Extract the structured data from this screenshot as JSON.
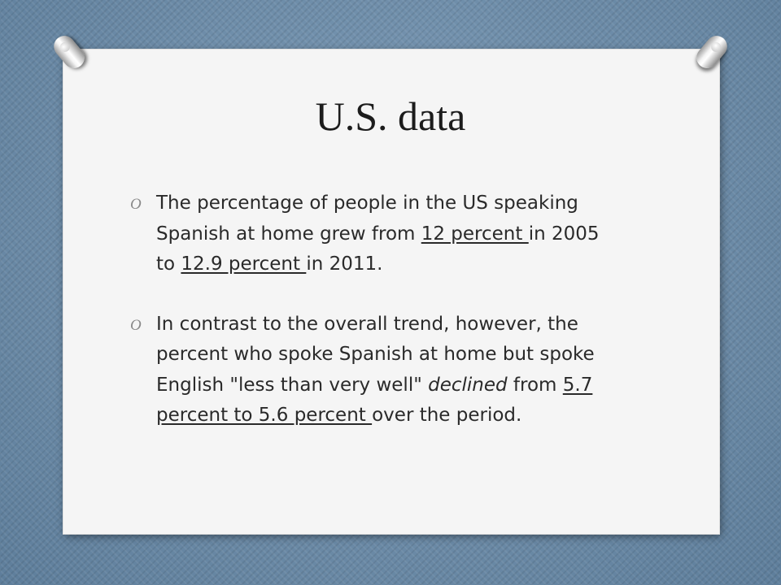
{
  "slide": {
    "title": "U.S. data",
    "bullet_marker": "O",
    "bullets": [
      {
        "segments": [
          {
            "text": "The percentage of people in the US speaking Spanish at home grew from ",
            "style": "normal"
          },
          {
            "text": "12 percent ",
            "style": "underline"
          },
          {
            "text": "in 2005 to ",
            "style": "normal"
          },
          {
            "text": "12.9 percent ",
            "style": "underline"
          },
          {
            "text": "in 2011.",
            "style": "normal"
          }
        ]
      },
      {
        "segments": [
          {
            "text": "In contrast to the overall trend, however, the percent who spoke Spanish at home but spoke English \"less than very well\" ",
            "style": "normal"
          },
          {
            "text": "declined",
            "style": "italic"
          },
          {
            "text": " from ",
            "style": "normal"
          },
          {
            "text": "5.7 percent to 5.6 percent ",
            "style": "underline"
          },
          {
            "text": "over the period.",
            "style": "normal"
          }
        ]
      }
    ]
  }
}
